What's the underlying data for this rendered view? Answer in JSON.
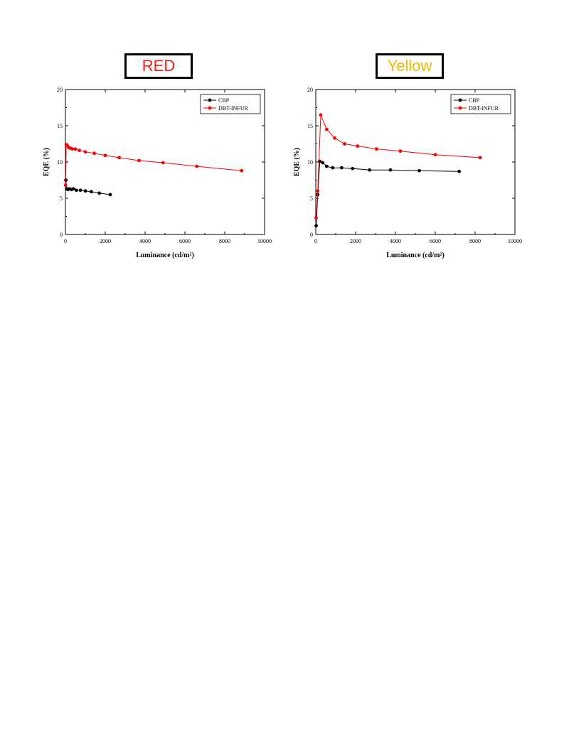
{
  "charts": [
    {
      "label": "RED",
      "label_color": "#ff1a1a",
      "chart_data": {
        "type": "line",
        "xlabel": "Luminance (cd/m²)",
        "ylabel": "EQE (%)",
        "xlim": [
          0,
          10000
        ],
        "ylim": [
          0,
          20
        ],
        "x_ticks": [
          "0",
          "2000",
          "4000",
          "6000",
          "8000",
          "10000"
        ],
        "y_ticks": [
          "0",
          "5",
          "10",
          "15",
          "20"
        ],
        "legend": "top-right",
        "series": [
          {
            "name": "CBP",
            "color": "#000000",
            "points": [
              [
                20,
                7.5
              ],
              [
                60,
                6.3
              ],
              [
                120,
                6.2
              ],
              [
                200,
                6.3
              ],
              [
                300,
                6.2
              ],
              [
                400,
                6.3
              ],
              [
                550,
                6.1
              ],
              [
                750,
                6.1
              ],
              [
                1000,
                6.0
              ],
              [
                1300,
                5.9
              ],
              [
                1700,
                5.7
              ],
              [
                2250,
                5.5
              ]
            ]
          },
          {
            "name": "DBT-INFUR",
            "color": "#ff0000",
            "points": [
              [
                10,
                6.8
              ],
              [
                40,
                12.4
              ],
              [
                90,
                12.3
              ],
              [
                160,
                12.0
              ],
              [
                250,
                11.9
              ],
              [
                350,
                11.8
              ],
              [
                500,
                11.8
              ],
              [
                700,
                11.6
              ],
              [
                1000,
                11.4
              ],
              [
                1450,
                11.2
              ],
              [
                2000,
                10.9
              ],
              [
                2700,
                10.6
              ],
              [
                3700,
                10.2
              ],
              [
                4900,
                9.9
              ],
              [
                6600,
                9.4
              ],
              [
                8850,
                8.8
              ]
            ]
          }
        ]
      }
    },
    {
      "label": "Yellow",
      "label_color": "#f5b400",
      "chart_data": {
        "type": "line",
        "xlabel": "Luminance (cd/m²)",
        "ylabel": "EQE (%)",
        "xlim": [
          0,
          10000
        ],
        "ylim": [
          0,
          20
        ],
        "x_ticks": [
          "0",
          "2000",
          "4000",
          "6000",
          "8000",
          "10000"
        ],
        "y_ticks": [
          "0",
          "5",
          "10",
          "15",
          "20"
        ],
        "legend": "top-right",
        "series": [
          {
            "name": "CBP",
            "color": "#000000",
            "points": [
              [
                20,
                1.2
              ],
              [
                100,
                5.5
              ],
              [
                200,
                10.1
              ],
              [
                350,
                9.9
              ],
              [
                550,
                9.4
              ],
              [
                850,
                9.2
              ],
              [
                1300,
                9.2
              ],
              [
                1850,
                9.1
              ],
              [
                2700,
                8.9
              ],
              [
                3750,
                8.9
              ],
              [
                5200,
                8.8
              ],
              [
                7200,
                8.7
              ]
            ]
          },
          {
            "name": "DBT-INFUR",
            "color": "#ff0000",
            "points": [
              [
                20,
                2.3
              ],
              [
                100,
                6.0
              ],
              [
                250,
                16.5
              ],
              [
                550,
                14.5
              ],
              [
                950,
                13.3
              ],
              [
                1450,
                12.5
              ],
              [
                2100,
                12.2
              ],
              [
                3050,
                11.8
              ],
              [
                4250,
                11.5
              ],
              [
                6000,
                11.0
              ],
              [
                8250,
                10.6
              ]
            ]
          }
        ]
      }
    }
  ]
}
